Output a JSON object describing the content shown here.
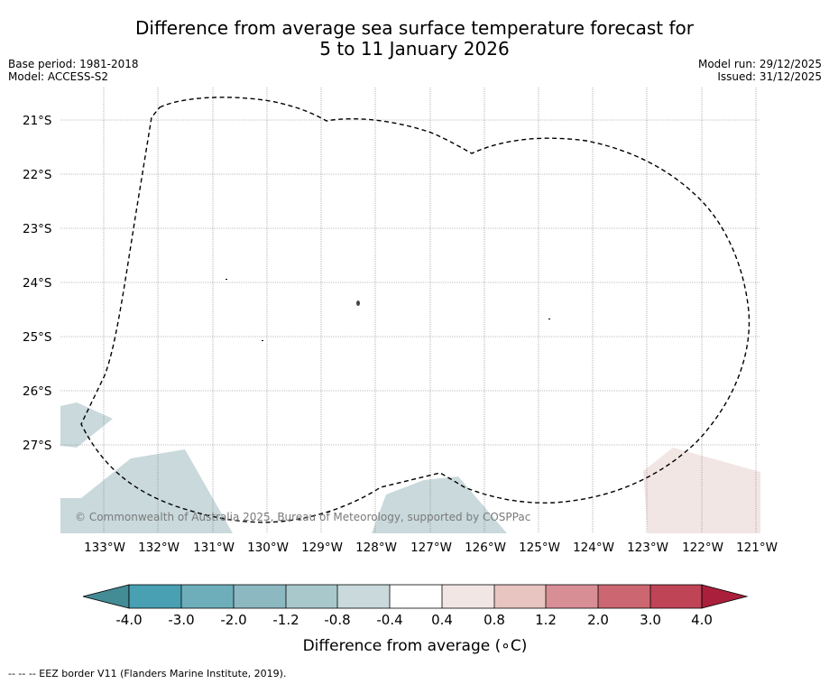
{
  "title": {
    "line1": "Difference from average sea surface temperature forecast for",
    "line2": "5 to 11 January 2026"
  },
  "meta": {
    "base_period": "Base period: 1981-2018",
    "model": "Model: ACCESS-S2",
    "model_run": "Model run: 29/12/2025",
    "issued": "Issued: 31/12/2025"
  },
  "map": {
    "lat_labels": [
      "21°S",
      "22°S",
      "23°S",
      "24°S",
      "25°S",
      "26°S",
      "27°S"
    ],
    "lon_labels": [
      "133°W",
      "132°W",
      "131°W",
      "130°W",
      "129°W",
      "128°W",
      "127°W",
      "126°W",
      "125°W",
      "124°W",
      "123°W",
      "122°W",
      "121°W"
    ],
    "copyright": "© Commonwealth of Australia 2025, Bureau of Meteorology, supported by COSPPac",
    "colors": {
      "cool_region": "#c9d9dc",
      "warm_region": "#f2e6e4",
      "eez_border": "#000000",
      "gridline": "#808080"
    }
  },
  "colorbar": {
    "title": "Difference from average (∘C)",
    "tick_labels": [
      "-4.0",
      "-3.0",
      "-2.0",
      "-1.2",
      "-0.8",
      "-0.4",
      "0.4",
      "0.8",
      "1.2",
      "2.0",
      "3.0",
      "4.0"
    ],
    "bin_colors": [
      "#438b95",
      "#48a0b2",
      "#6eaebb",
      "#8cb8c2",
      "#a9c8cc",
      "#c9d9dc",
      "#ffffff",
      "#f2e6e4",
      "#e8c5c1",
      "#d88e95",
      "#cc6670",
      "#bf4456",
      "#aa1f3c"
    ]
  },
  "footer": "--  --  -- EEZ border V11 (Flanders Marine Institute, 2019)."
}
